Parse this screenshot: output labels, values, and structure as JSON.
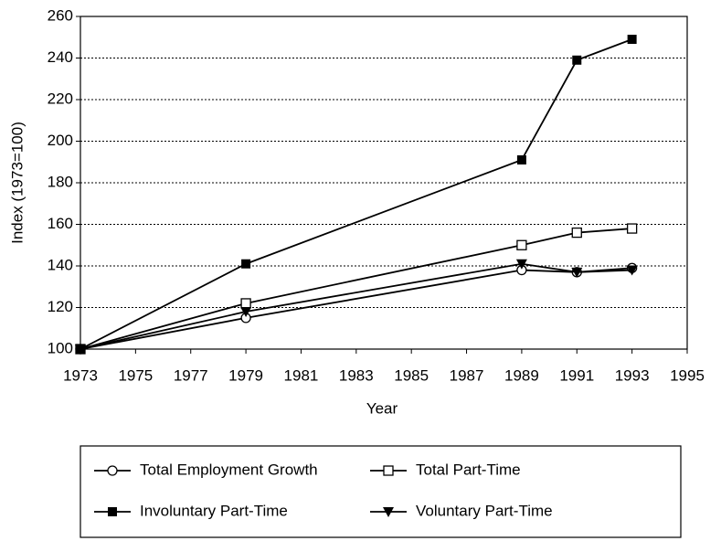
{
  "chart_data": {
    "type": "line",
    "x_label": "Year",
    "y_label": "Index (1973=100)",
    "series": [
      {
        "name": "Total Employment Growth",
        "color": "#000000",
        "marker": "circle-open",
        "x": [
          1973,
          1979,
          1989,
          1991,
          1993
        ],
        "values": [
          100,
          115,
          138,
          137,
          139
        ]
      },
      {
        "name": "Total Part-Time",
        "color": "#000000",
        "marker": "square-open",
        "x": [
          1973,
          1979,
          1989,
          1991,
          1993
        ],
        "values": [
          100,
          122,
          150,
          156,
          158
        ]
      },
      {
        "name": "Involuntary Part-Time",
        "color": "#000000",
        "marker": "square-filled",
        "x": [
          1973,
          1979,
          1989,
          1991,
          1993
        ],
        "values": [
          100,
          141,
          191,
          239,
          249
        ]
      },
      {
        "name": "Voluntary Part-Time",
        "color": "#000000",
        "marker": "triangle-down-filled",
        "x": [
          1973,
          1979,
          1989,
          1991,
          1993
        ],
        "values": [
          100,
          118,
          141,
          137,
          138
        ]
      }
    ],
    "xlim": [
      1973,
      1995
    ],
    "xticks": [
      1973,
      1975,
      1977,
      1979,
      1981,
      1983,
      1985,
      1987,
      1989,
      1991,
      1993,
      1995
    ],
    "ylim": [
      100,
      260
    ],
    "yticks": [
      100,
      120,
      140,
      160,
      180,
      200,
      220,
      240,
      260
    ],
    "grid": true,
    "legend": "bottom"
  }
}
